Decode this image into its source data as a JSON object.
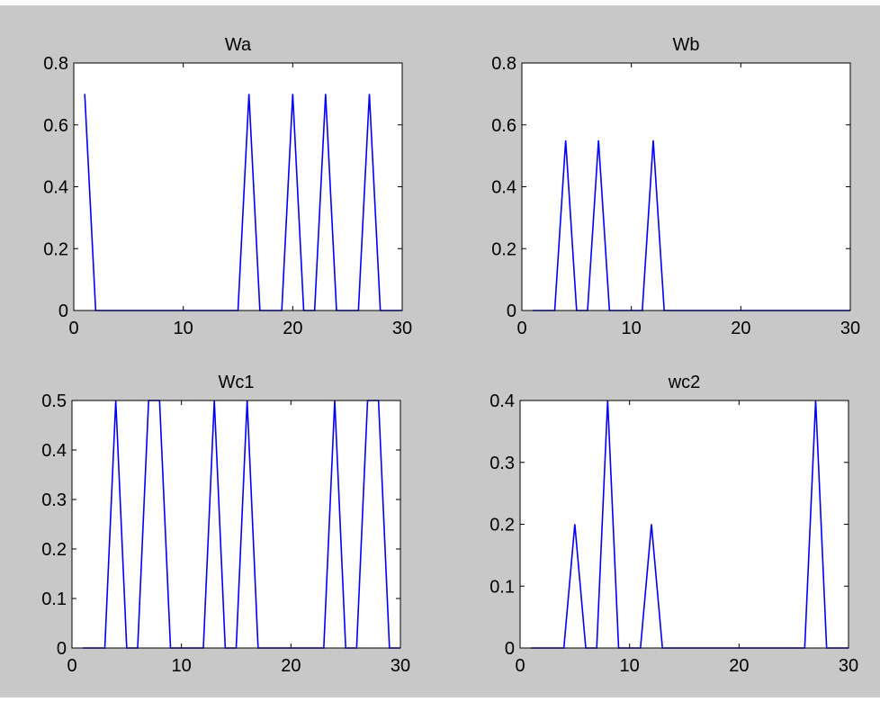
{
  "figure": {
    "background": "#c8c8c8",
    "axes_background": "#ffffff",
    "line_color": "#0000ff"
  },
  "chart_data": [
    {
      "type": "line",
      "title": "Wa",
      "xlim": [
        0,
        30
      ],
      "ylim": [
        0,
        0.8
      ],
      "xticks": [
        "0",
        "10",
        "20",
        "30"
      ],
      "yticks": [
        "0",
        "0.2",
        "0.4",
        "0.6",
        "0.8"
      ],
      "x": [
        1,
        2,
        2,
        15,
        16,
        17,
        19,
        20,
        21,
        22,
        23,
        24,
        26,
        27,
        28,
        30
      ],
      "y": [
        0.7,
        0,
        0,
        0,
        0.7,
        0,
        0,
        0.7,
        0,
        0,
        0.7,
        0,
        0,
        0.7,
        0,
        0
      ],
      "grid": false
    },
    {
      "type": "line",
      "title": "Wb",
      "xlim": [
        0,
        30
      ],
      "ylim": [
        0,
        0.8
      ],
      "xticks": [
        "0",
        "10",
        "20",
        "30"
      ],
      "yticks": [
        "0",
        "0.2",
        "0.4",
        "0.6",
        "0.8"
      ],
      "x": [
        1,
        3,
        4,
        5,
        6,
        7,
        8,
        11,
        12,
        13,
        30
      ],
      "y": [
        0,
        0,
        0.55,
        0,
        0,
        0.55,
        0,
        0,
        0.55,
        0,
        0
      ],
      "grid": false
    },
    {
      "type": "line",
      "title": "Wc1",
      "xlim": [
        0,
        30
      ],
      "ylim": [
        0,
        0.5
      ],
      "xticks": [
        "0",
        "10",
        "20",
        "30"
      ],
      "yticks": [
        "0",
        "0.1",
        "0.2",
        "0.3",
        "0.4",
        "0.5"
      ],
      "x": [
        1,
        3,
        4,
        5,
        6,
        7,
        8,
        9,
        12,
        13,
        14,
        15,
        16,
        17,
        23,
        24,
        25,
        26,
        27,
        28,
        29,
        30
      ],
      "y": [
        0,
        0,
        0.5,
        0,
        0,
        0.5,
        0.5,
        0,
        0,
        0.5,
        0,
        0,
        0.5,
        0,
        0,
        0.5,
        0,
        0,
        0.5,
        0.5,
        0,
        0
      ],
      "grid": false
    },
    {
      "type": "line",
      "title": "wc2",
      "xlim": [
        0,
        30
      ],
      "ylim": [
        0,
        0.4
      ],
      "xticks": [
        "0",
        "10",
        "20",
        "30"
      ],
      "yticks": [
        "0",
        "0.1",
        "0.2",
        "0.3",
        "0.4"
      ],
      "x": [
        1,
        4,
        5,
        6,
        7,
        8,
        9,
        11,
        12,
        13,
        26,
        27,
        28,
        30
      ],
      "y": [
        0,
        0,
        0.2,
        0,
        0,
        0.4,
        0,
        0,
        0.2,
        0,
        0,
        0.4,
        0,
        0
      ],
      "grid": false
    }
  ]
}
